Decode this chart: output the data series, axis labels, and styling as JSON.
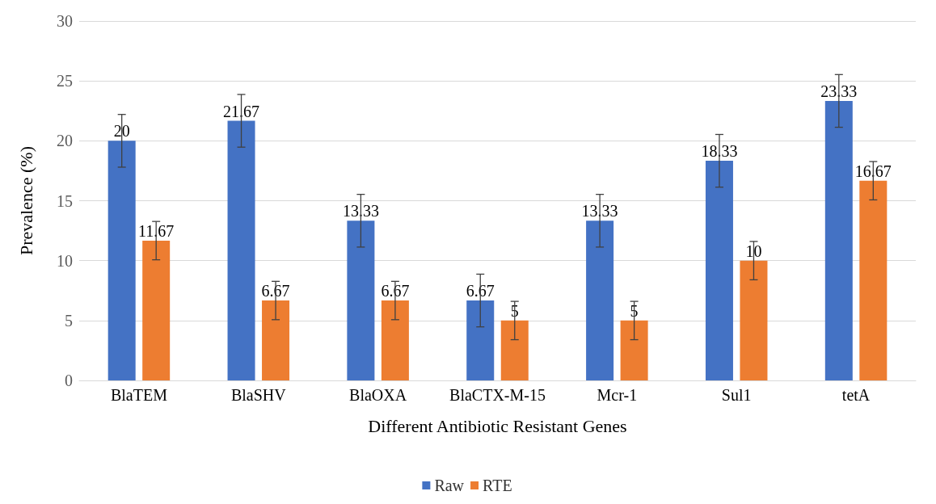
{
  "chart_data": {
    "type": "bar",
    "xlabel": "Different Antibiotic Resistant Genes",
    "ylabel": "Prevalence (%)",
    "categories": [
      "BlaTEM",
      "BlaSHV",
      "BlaOXA",
      "BlaCTX-M-15",
      "Mcr-1",
      "Sul1",
      "tetA"
    ],
    "series": [
      {
        "name": "Raw",
        "color": "#4472c4",
        "values": [
          20,
          21.67,
          13.33,
          6.67,
          13.33,
          18.33,
          23.33
        ],
        "errors": [
          2.2,
          2.2,
          2.2,
          2.2,
          2.2,
          2.2,
          2.2
        ]
      },
      {
        "name": "RTE",
        "color": "#ed7d31",
        "values": [
          11.67,
          6.67,
          6.67,
          5,
          5,
          10,
          16.67
        ],
        "errors": [
          1.6,
          1.6,
          1.6,
          1.6,
          1.6,
          1.6,
          1.6
        ]
      }
    ],
    "ylim": [
      0,
      30
    ],
    "yticks": [
      0,
      5,
      10,
      15,
      20,
      25,
      30
    ],
    "grid": "y",
    "legend": "bottom",
    "data_labels": true
  }
}
